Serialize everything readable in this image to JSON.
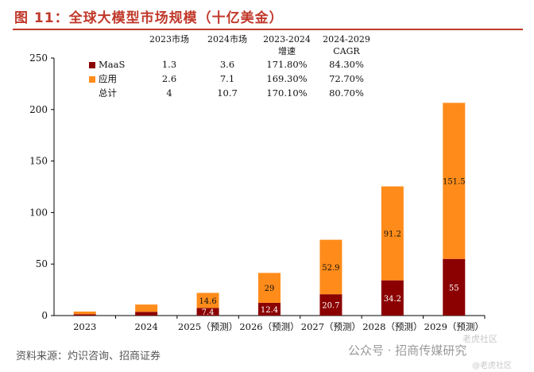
{
  "header": {
    "title": "图 11：全球大模型市场规模（十亿美金）"
  },
  "colors": {
    "maas": "#8b0000",
    "app": "#ff8c1a",
    "title": "#c0392b"
  },
  "table": {
    "headers": [
      {
        "line1": "",
        "line2": ""
      },
      {
        "line1": "2023市场",
        "line2": ""
      },
      {
        "line1": "2024市场",
        "line2": ""
      },
      {
        "line1": "2023-2024",
        "line2": "增速"
      },
      {
        "line1": "2024-2029",
        "line2": "CAGR"
      }
    ],
    "rows": [
      {
        "label": "MaaS",
        "c2023": "1.3",
        "c2024": "3.6",
        "growth": "171.80%",
        "cagr": "84.30%"
      },
      {
        "label": "应用",
        "c2023": "2.6",
        "c2024": "7.1",
        "growth": "169.30%",
        "cagr": "72.70%"
      },
      {
        "label": "总计",
        "c2023": "4",
        "c2024": "10.7",
        "growth": "170.10%",
        "cagr": "80.70%"
      }
    ]
  },
  "chart_data": {
    "type": "bar",
    "stacked": true,
    "categories": [
      "2023",
      "2024",
      "2025（预测）",
      "2026（预测）",
      "2027（预测）",
      "2028（预测）",
      "2029（预测）"
    ],
    "series": [
      {
        "name": "MaaS",
        "values": [
          1.3,
          3.6,
          7.4,
          12.4,
          20.7,
          34.2,
          55
        ]
      },
      {
        "name": "应用",
        "values": [
          2.6,
          7.1,
          14.6,
          29,
          52.9,
          91.2,
          151.5
        ]
      }
    ],
    "data_labels": {
      "MaaS": [
        "",
        "",
        "7.4",
        "12.4",
        "20.7",
        "34.2",
        "55"
      ],
      "应用": [
        "",
        "",
        "14.6",
        "29",
        "52.9",
        "91.2",
        "151.5"
      ]
    },
    "yticks": [
      "0",
      "50",
      "100",
      "150",
      "200",
      "250"
    ],
    "ylim": [
      0,
      250
    ],
    "title": "全球大模型市场规模（十亿美金）"
  },
  "footer": {
    "source": "资料来源：灼识咨询、招商证券",
    "watermark": "公众号 · 招商传媒研究",
    "watermark_logo": "老虎社区",
    "watermark_sub": "@老虎社区"
  }
}
